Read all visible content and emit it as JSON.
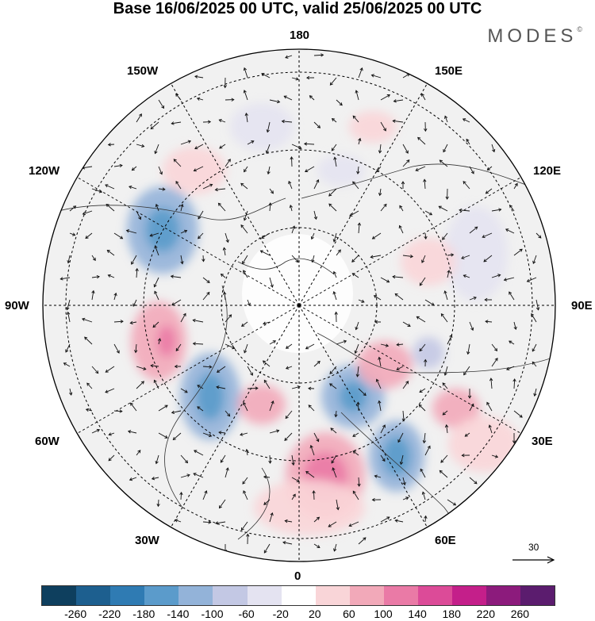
{
  "title": "Base 16/06/2025 00 UTC, valid 25/06/2025 00 UTC",
  "brand": {
    "text": "MODES",
    "mark": "©"
  },
  "map": {
    "projection": "north-polar-stereographic",
    "longitude_labels": {
      "top": "180",
      "bottom": "0",
      "left": "90W",
      "right": "90E",
      "upper_left_1": "150W",
      "upper_left_2": "120W",
      "upper_right_1": "150E",
      "upper_right_2": "120E",
      "lower_left_1": "60W",
      "lower_left_2": "30W",
      "lower_right_1": "60E",
      "lower_right_2": "30E"
    },
    "reference_vector": {
      "label": "30"
    }
  },
  "colorbar": {
    "tick_labels": [
      "-260",
      "-220",
      "-180",
      "-140",
      "-100",
      "-60",
      "-20",
      "20",
      "60",
      "100",
      "140",
      "180",
      "220",
      "260"
    ],
    "colors": [
      "#0e3f5e",
      "#1d5f8f",
      "#2f7bb3",
      "#5b9bcb",
      "#93b3d9",
      "#c3c8e4",
      "#e4e3f1",
      "#ffffff",
      "#f9d5d8",
      "#f2a9b9",
      "#ea7aa6",
      "#dc4b98",
      "#c41f8a",
      "#8c1b7c",
      "#5b1c6e"
    ]
  }
}
